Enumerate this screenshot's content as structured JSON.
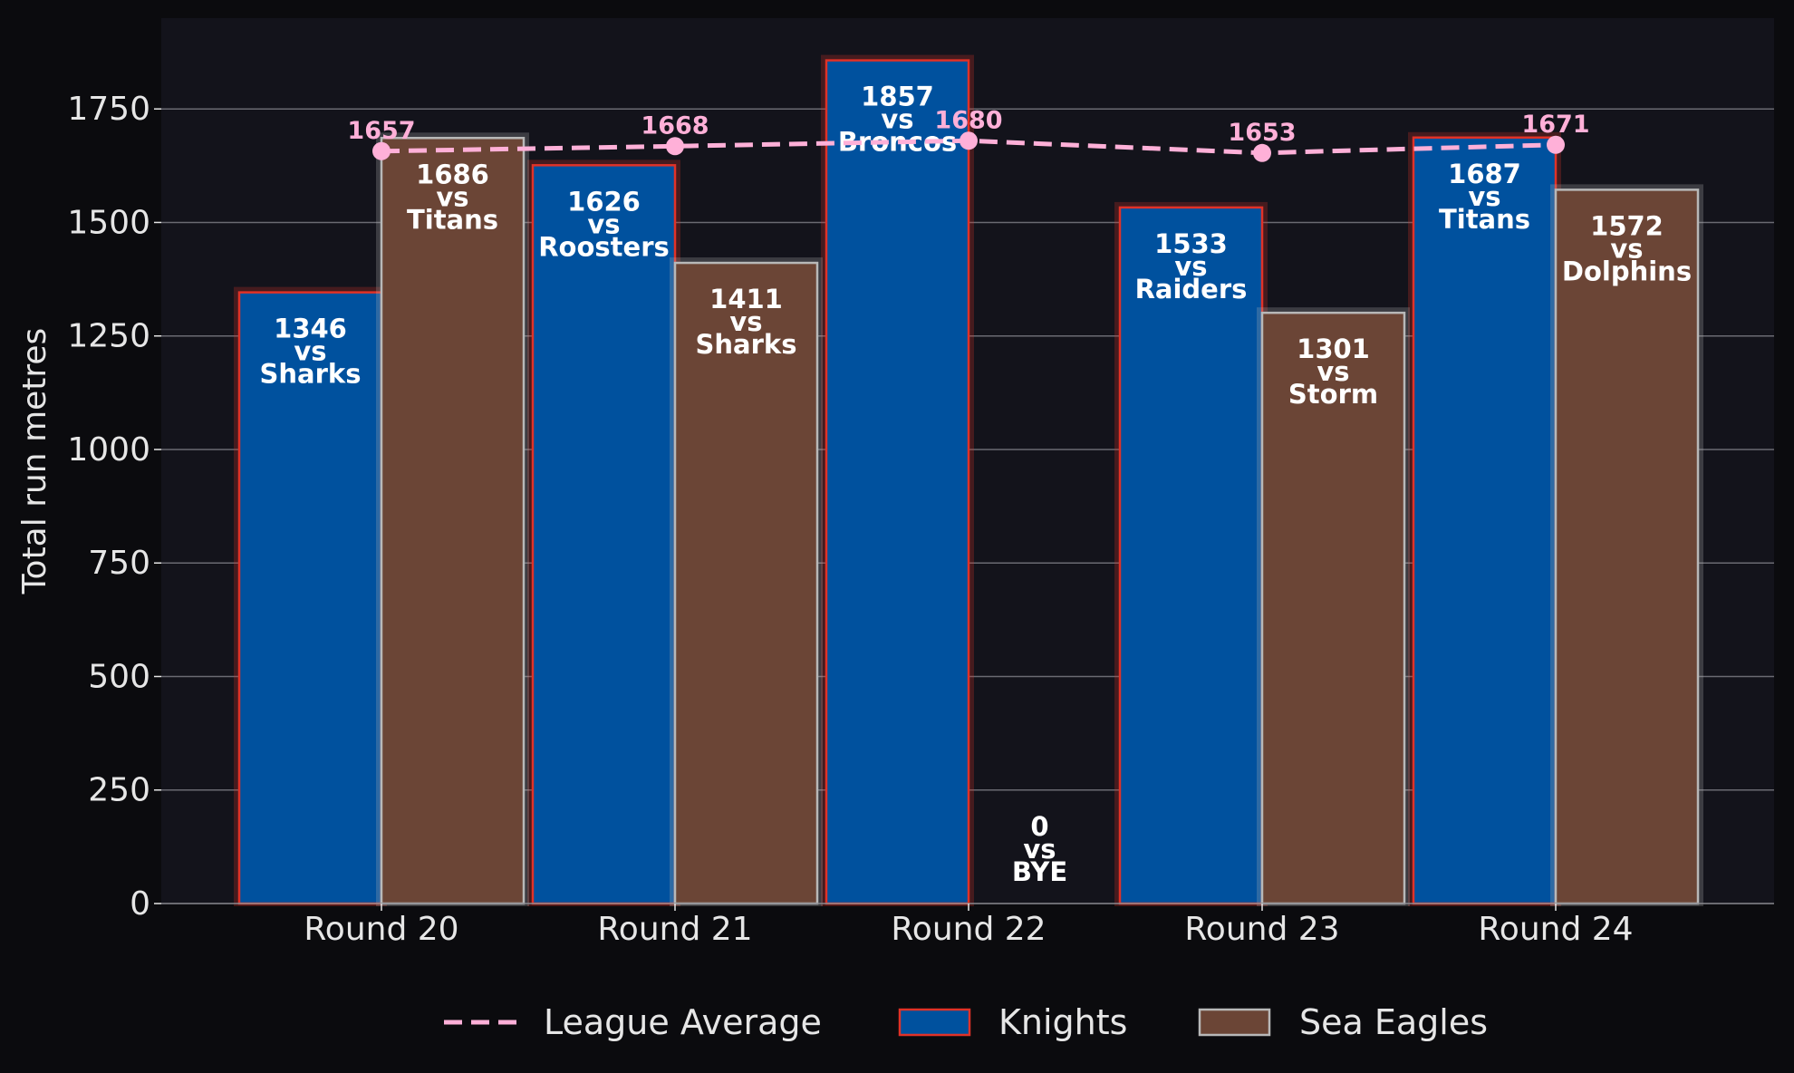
{
  "chart_data": {
    "type": "bar",
    "categories": [
      "Round 20",
      "Round 21",
      "Round 22",
      "Round 23",
      "Round 24"
    ],
    "ylabel": "Total run metres",
    "xlabel": "",
    "ylim": [
      0,
      1950
    ],
    "yticks": [
      0,
      250,
      500,
      750,
      1000,
      1250,
      1500,
      1750
    ],
    "grid": "horizontal",
    "legend_position": "bottom",
    "series": [
      {
        "name": "Knights",
        "kind": "bar",
        "color": "#00519e",
        "edge_color": "#e03228",
        "values": [
          1346,
          1626,
          1857,
          1533,
          1687
        ],
        "opponents": [
          "Sharks",
          "Roosters",
          "Broncos",
          "Raiders",
          "Titans"
        ]
      },
      {
        "name": "Sea Eagles",
        "kind": "bar",
        "color": "#6b4536",
        "edge_color": "#b8b8b8",
        "values": [
          1686,
          1411,
          0,
          1301,
          1572
        ],
        "opponents": [
          "Titans",
          "Sharks",
          "BYE",
          "Storm",
          "Dolphins"
        ]
      },
      {
        "name": "League Average",
        "kind": "line",
        "style": "dashed",
        "color": "#ffb0d8",
        "values": [
          1657,
          1668,
          1680,
          1653,
          1671
        ]
      }
    ],
    "vs_word": "vs"
  },
  "colors": {
    "page_background": "#0b0b0e",
    "plot_background": "#13131b",
    "grid": "#6a6a72",
    "text": "#e6e6e6"
  }
}
